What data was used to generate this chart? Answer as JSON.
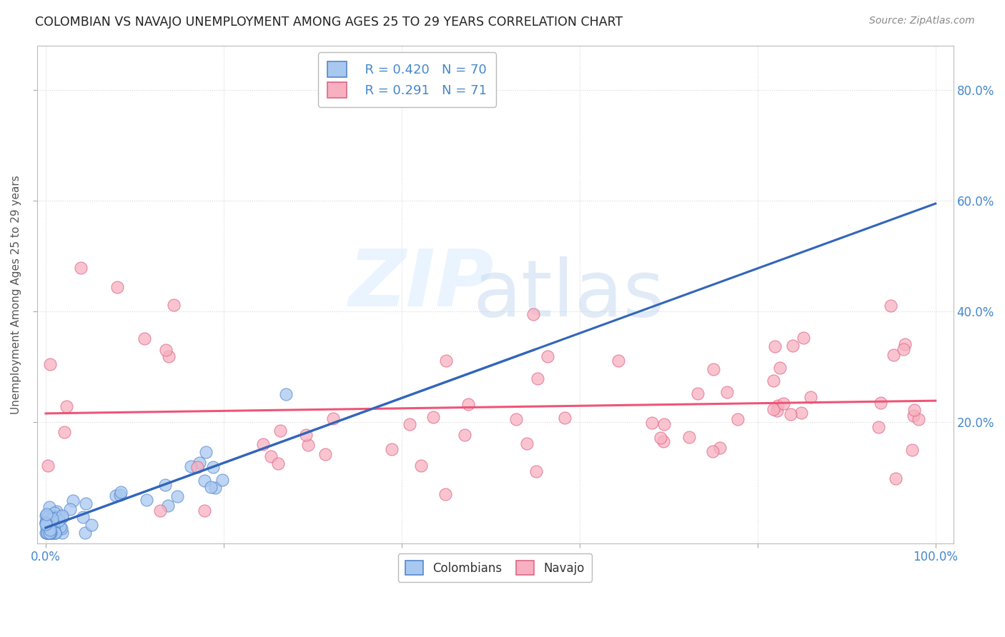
{
  "title": "COLOMBIAN VS NAVAJO UNEMPLOYMENT AMONG AGES 25 TO 29 YEARS CORRELATION CHART",
  "source": "Source: ZipAtlas.com",
  "ylabel": "Unemployment Among Ages 25 to 29 years",
  "xlim": [
    0.0,
    1.0
  ],
  "ylim": [
    0.0,
    0.88
  ],
  "xtick_values": [
    0.0,
    0.2,
    0.4,
    0.6,
    0.8,
    1.0
  ],
  "xtick_labels": [
    "0.0%",
    "",
    "",
    "",
    "",
    "100.0%"
  ],
  "ytick_values": [
    0.2,
    0.4,
    0.6,
    0.8
  ],
  "ytick_labels": [
    "20.0%",
    "40.0%",
    "60.0%",
    "80.0%"
  ],
  "colombian_fill": "#a8c8f0",
  "colombian_edge": "#5588cc",
  "navajo_fill": "#f8b0c0",
  "navajo_edge": "#dd6688",
  "colombian_line_color": "#3366bb",
  "navajo_line_color": "#ee5577",
  "navajo_dashed_color": "#aabbdd",
  "tick_color": "#4488cc",
  "axis_label_color": "#555555",
  "title_color": "#222222",
  "source_color": "#888888",
  "background": "#ffffff",
  "grid_color": "#cccccc",
  "legend_edge": "#bbbbbb",
  "watermark_zip_color": "#ddeeff",
  "watermark_atlas_color": "#c8ddf5",
  "legend_R_col": "R = 0.420",
  "legend_N_col": "N = 70",
  "legend_R_nav": "R = 0.291",
  "legend_N_nav": "N = 71"
}
